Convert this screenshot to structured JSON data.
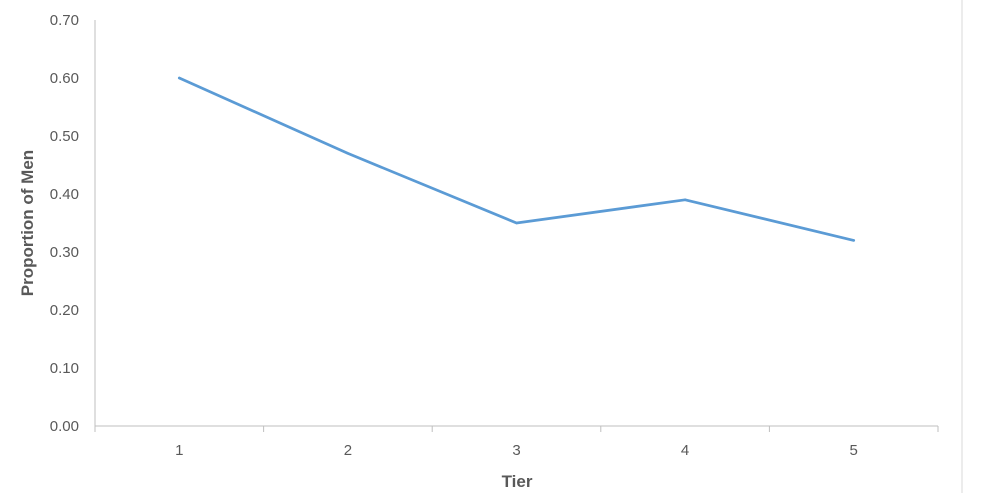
{
  "chart_data": {
    "type": "line",
    "title": "",
    "xlabel": "Tier",
    "ylabel": "Proportion of Men",
    "categories": [
      "1",
      "2",
      "3",
      "4",
      "5"
    ],
    "series": [
      {
        "values": [
          0.6,
          0.47,
          0.35,
          0.39,
          0.32
        ]
      }
    ],
    "ylim": [
      0,
      0.7
    ],
    "y_ticks": [
      "0.00",
      "0.10",
      "0.20",
      "0.30",
      "0.40",
      "0.50",
      "0.60",
      "0.70"
    ],
    "grid": false,
    "legend": "none",
    "colors": {
      "series": "#5B9BD5",
      "axis": "#BFBFBF",
      "text": "#595959"
    }
  }
}
